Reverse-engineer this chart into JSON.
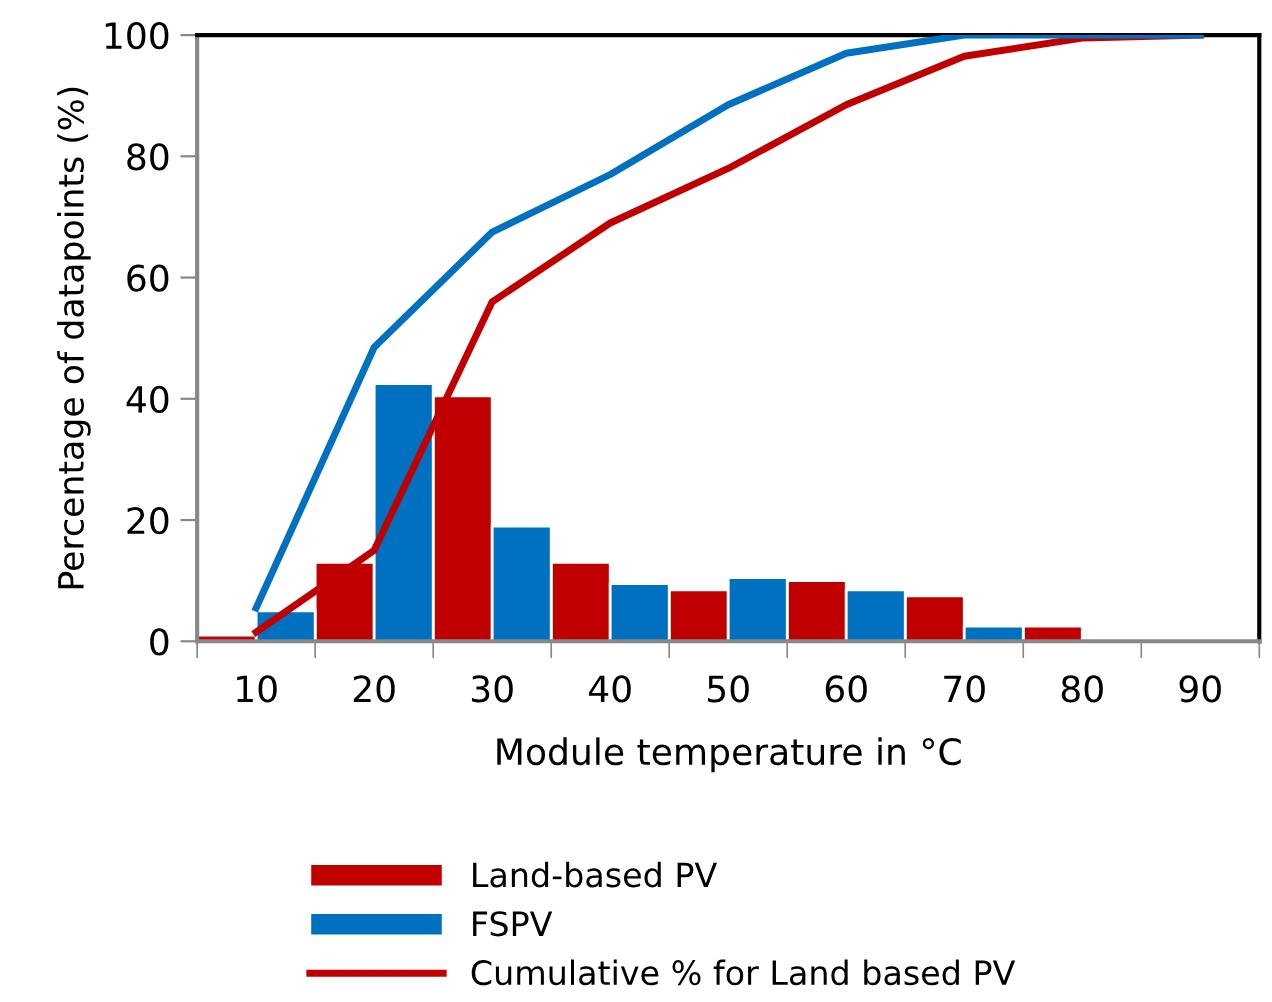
{
  "chart_data": {
    "type": "bar",
    "xlabel": "Module temperature in °C",
    "ylabel": "Percentage of datapoints (%)",
    "categories": [
      "10",
      "20",
      "30",
      "40",
      "50",
      "60",
      "70",
      "80",
      "90"
    ],
    "series": [
      {
        "name": "Land-based PV",
        "color": "#c00000",
        "values": [
          1,
          13,
          40.5,
          13,
          8.5,
          10,
          7.5,
          2.5,
          0
        ]
      },
      {
        "name": "FSPV",
        "color": "#0070c0",
        "values": [
          5,
          42.5,
          19,
          9.5,
          10.5,
          8.5,
          2.5,
          0,
          0
        ]
      },
      {
        "name": "Cumulative % for Land based PV",
        "type": "line",
        "color": "#c00000",
        "values": [
          1.5,
          15,
          56,
          69,
          78,
          88.5,
          96.5,
          99.5,
          100
        ]
      },
      {
        "type": "line",
        "color": "#0070c0",
        "values": [
          5.5,
          48.5,
          67.5,
          77,
          88.5,
          97,
          100,
          100,
          100
        ]
      }
    ],
    "ylim": [
      0,
      100
    ],
    "yticks": [
      0,
      20,
      40,
      60,
      80,
      100
    ],
    "grid": false,
    "legend": "bottom",
    "marker": "none",
    "line_style": "solid"
  }
}
